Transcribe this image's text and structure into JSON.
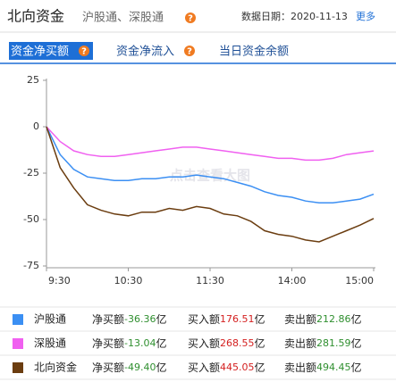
{
  "header": {
    "title": "北向资金",
    "subtitle": "沪股通、深股通",
    "help_icon": "?",
    "date_label": "数据日期：2020-11-13",
    "more": "更多"
  },
  "tabs": [
    {
      "label": "资金净买额",
      "help": true,
      "active": true
    },
    {
      "label": "资金净流入",
      "help": true,
      "active": false
    },
    {
      "label": "当日资金余额",
      "help": false,
      "active": false
    }
  ],
  "chart_data": {
    "type": "line",
    "watermark": "点击查看大图",
    "categories": [
      "9:30",
      null,
      null,
      null,
      null,
      null,
      "10:30",
      null,
      null,
      null,
      null,
      null,
      "11:30",
      null,
      null,
      null,
      null,
      null,
      "14:00",
      null,
      null,
      null,
      null,
      null,
      "15:00"
    ],
    "ylim": [
      -75,
      25
    ],
    "yticks": [
      25,
      0,
      -25,
      -50,
      -75
    ],
    "series": [
      {
        "name": "沪股通",
        "color": "#3b8ff3",
        "values": [
          0,
          -15,
          -23,
          -27,
          -28,
          -29,
          -29,
          -28,
          -28,
          -27,
          -27,
          -26,
          -27,
          -28,
          -30,
          -32,
          -35,
          -37,
          -38,
          -40,
          -41,
          -41,
          -40,
          -39,
          -36.36
        ]
      },
      {
        "name": "深股通",
        "color": "#f060f0",
        "values": [
          0,
          -8,
          -13,
          -15,
          -16,
          -16,
          -15,
          -14,
          -13,
          -12,
          -11,
          -11,
          -12,
          -13,
          -14,
          -15,
          -16,
          -17,
          -17,
          -18,
          -18,
          -17,
          -15,
          -14,
          -13.04
        ]
      },
      {
        "name": "北向资金",
        "color": "#6b3d10",
        "values": [
          0,
          -22,
          -33,
          -42,
          -45,
          -47,
          -48,
          -46,
          -46,
          -44,
          -45,
          -43,
          -44,
          -47,
          -48,
          -51,
          -56,
          -58,
          -59,
          -61,
          -62,
          -59,
          -56,
          -53,
          -49.4
        ]
      }
    ]
  },
  "legend_table": {
    "net_label": "净买额",
    "buy_label": "买入额",
    "sell_label": "卖出额",
    "unit": "亿",
    "rows": [
      {
        "net": "-36.36",
        "buy": "176.51",
        "sell": "212.86"
      },
      {
        "net": "-13.04",
        "buy": "268.55",
        "sell": "281.59"
      },
      {
        "net": "-49.40",
        "buy": "445.05",
        "sell": "494.45"
      }
    ]
  }
}
